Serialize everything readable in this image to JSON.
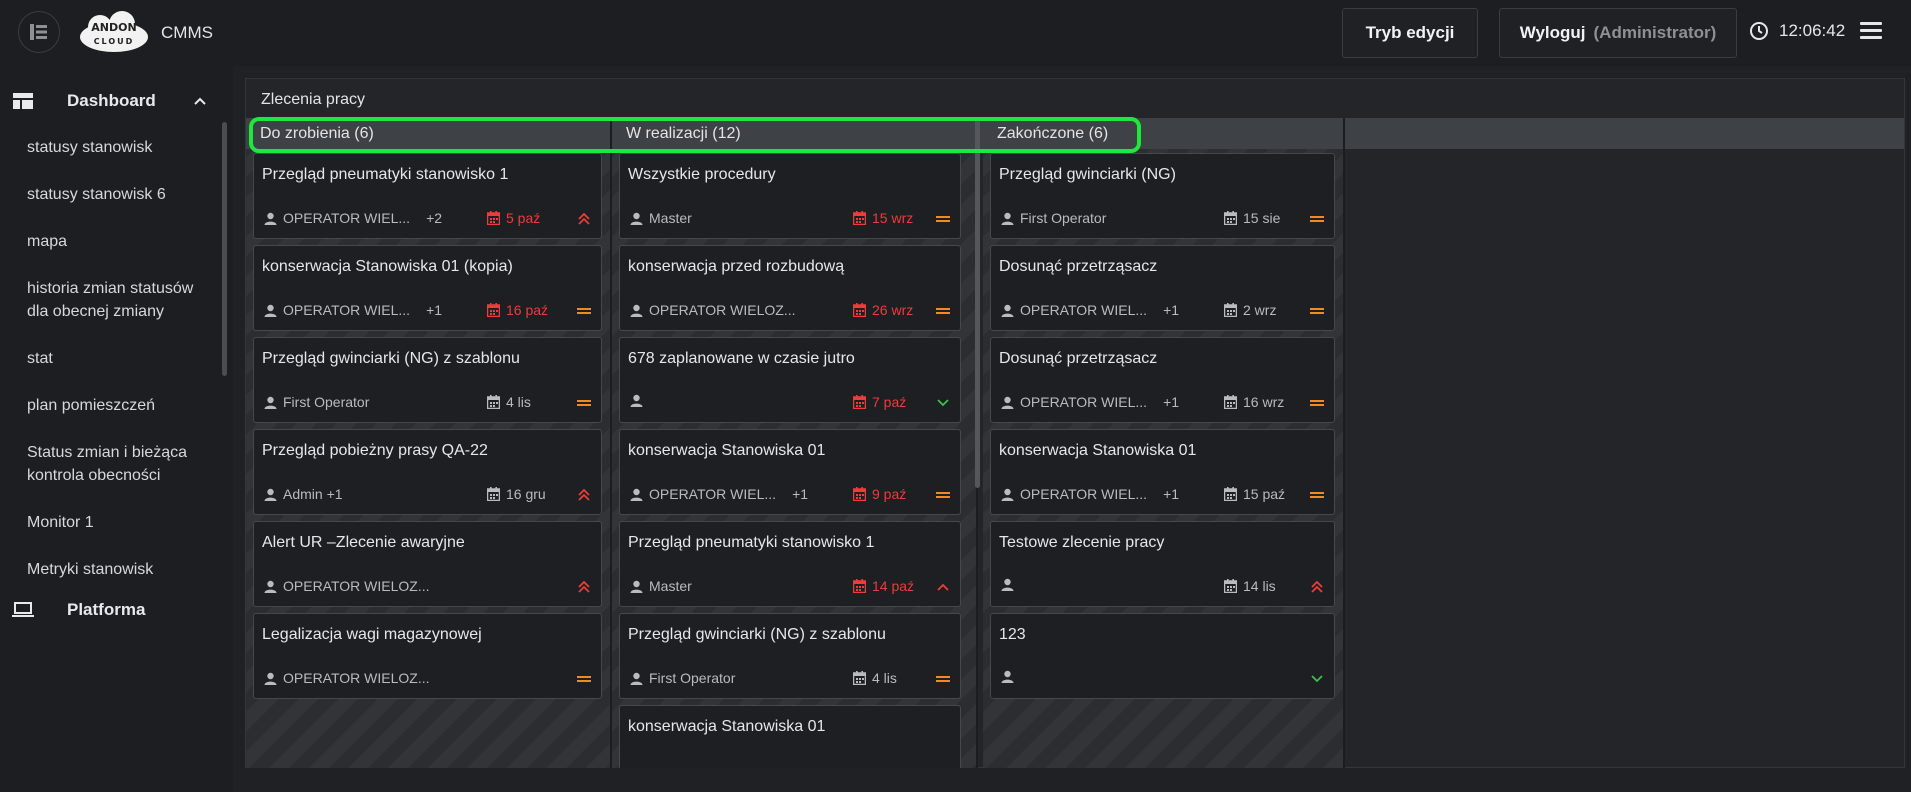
{
  "header": {
    "app_name": "CMMS",
    "edit_mode_label": "Tryb edycji",
    "logout_label": "Wyloguj",
    "logout_role": "(Administrator)",
    "time": "12:06:42",
    "logo_text": "ANDON CLOUD"
  },
  "sidebar": {
    "section_label": "Dashboard",
    "items": [
      {
        "label": "statusy stanowisk"
      },
      {
        "label": "statusy stanowisk 6"
      },
      {
        "label": "mapa"
      },
      {
        "label": "historia zmian statusów dla obecnej zmiany"
      },
      {
        "label": "stat"
      },
      {
        "label": "plan pomieszczeń"
      },
      {
        "label": "Status zmian i bieżąca kontrola obecności"
      },
      {
        "label": "Monitor 1"
      },
      {
        "label": "Metryki stanowisk"
      }
    ],
    "platform_label": "Platforma"
  },
  "board": {
    "title": "Zlecenia pracy",
    "columns": [
      {
        "title": "Do zrobienia (6)",
        "cards": [
          {
            "title": "Przegląd pneumatyki stanowisko 1",
            "user": "OPERATOR WIEL...",
            "extra": "+2",
            "date": "5 paź",
            "overdue": true,
            "priority": "high"
          },
          {
            "title": "konserwacja Stanowiska 01 (kopia)",
            "user": "OPERATOR WIEL...",
            "extra": "+1",
            "date": "16 paź",
            "overdue": true,
            "priority": "medium"
          },
          {
            "title": "Przegląd gwinciarki (NG) z szablonu",
            "user": "First Operator",
            "extra": "",
            "date": "4 lis",
            "overdue": false,
            "priority": "medium"
          },
          {
            "title": "Przegląd pobieżny prasy QA-22",
            "user": "Admin +1",
            "extra": "",
            "date": "16 gru",
            "overdue": false,
            "priority": "high"
          },
          {
            "title": "Alert UR –Zlecenie awaryjne",
            "user": "OPERATOR WIELOZ...",
            "extra": "",
            "date": "",
            "overdue": false,
            "priority": "high"
          },
          {
            "title": "Legalizacja wagi magazynowej",
            "user": "OPERATOR WIELOZ...",
            "extra": "",
            "date": "",
            "overdue": false,
            "priority": "medium"
          }
        ]
      },
      {
        "title": "W realizacji (12)",
        "cards": [
          {
            "title": "Wszystkie procedury",
            "user": "Master",
            "extra": "",
            "date": "15 wrz",
            "overdue": true,
            "priority": "medium"
          },
          {
            "title": "konserwacja przed rozbudową",
            "user": "OPERATOR WIELOZ...",
            "extra": "",
            "date": "26 wrz",
            "overdue": true,
            "priority": "medium"
          },
          {
            "title": "678 zaplanowane w czasie jutro",
            "user": "",
            "extra": "",
            "date": "7 paź",
            "overdue": true,
            "priority": "low"
          },
          {
            "title": "konserwacja Stanowiska 01",
            "user": "OPERATOR WIEL...",
            "extra": "+1",
            "date": "9 paź",
            "overdue": true,
            "priority": "medium"
          },
          {
            "title": "Przegląd pneumatyki stanowisko 1",
            "user": "Master",
            "extra": "",
            "date": "14 paź",
            "overdue": true,
            "priority": "up"
          },
          {
            "title": "Przegląd gwinciarki (NG) z szablonu",
            "user": "First Operator",
            "extra": "",
            "date": "4 lis",
            "overdue": false,
            "priority": "medium"
          },
          {
            "title": "konserwacja Stanowiska 01",
            "user": "",
            "extra": "",
            "date": "",
            "overdue": false,
            "priority": ""
          }
        ]
      },
      {
        "title": "Zakończone (6)",
        "cards": [
          {
            "title": "Przegląd gwinciarki (NG)",
            "user": "First Operator",
            "extra": "",
            "date": "15 sie",
            "overdue": false,
            "priority": "medium"
          },
          {
            "title": "Dosunąć przetrząsacz",
            "user": "OPERATOR WIEL...",
            "extra": "+1",
            "date": "2 wrz",
            "overdue": false,
            "priority": "medium"
          },
          {
            "title": "Dosunąć przetrząsacz",
            "user": "OPERATOR WIEL...",
            "extra": "+1",
            "date": "16 wrz",
            "overdue": false,
            "priority": "medium"
          },
          {
            "title": "konserwacja Stanowiska 01",
            "user": "OPERATOR WIEL...",
            "extra": "+1",
            "date": "15 paź",
            "overdue": false,
            "priority": "medium"
          },
          {
            "title": "Testowe zlecenie pracy",
            "user": "",
            "extra": "",
            "date": "14 lis",
            "overdue": false,
            "priority": "high"
          },
          {
            "title": "123",
            "user": "",
            "extra": "",
            "date": "",
            "overdue": false,
            "priority": "low"
          }
        ]
      }
    ]
  },
  "colors": {
    "overdue": "#ee3b3b",
    "priority_high": "#ee3b3b",
    "priority_medium": "#f08a24",
    "priority_low": "#3fbf4a",
    "highlight": "#1ee83b"
  }
}
